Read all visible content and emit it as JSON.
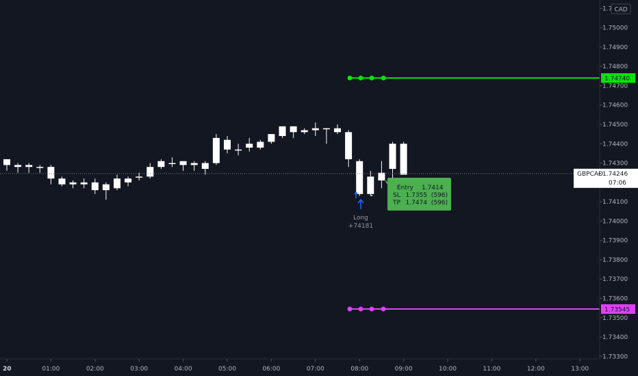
{
  "colors": {
    "background": "#131722",
    "candle": "#ffffff",
    "tp_line": "#00e600",
    "sl_line": "#e040fb",
    "entry_box": "#4caf50",
    "signal_arrow": "#2962ff",
    "price_line": "#787b86"
  },
  "chart_data": {
    "type": "candlestick",
    "symbol": "GBPCAD",
    "currency": "CAD",
    "current_price": "1.74246",
    "countdown": "07:06",
    "x_ticks": [
      "20",
      "01:00",
      "02:00",
      "03:00",
      "04:00",
      "05:00",
      "06:00",
      "07:00",
      "08:00",
      "09:00",
      "10:00",
      "11:00",
      "12:00",
      "13:00"
    ],
    "y_ticks": [
      "1.75100",
      "1.75000",
      "1.74900",
      "1.74800",
      "1.74700",
      "1.74600",
      "1.74500",
      "1.74400",
      "1.74300",
      "1.74200",
      "1.74100",
      "1.74000",
      "1.73900",
      "1.73800",
      "1.73700",
      "1.73600",
      "1.73500",
      "1.73400",
      "1.73300"
    ],
    "ylim": [
      1.7328,
      1.7514
    ],
    "candles": [
      {
        "o": 1.7429,
        "h": 1.7432,
        "l": 1.7426,
        "c": 1.7432
      },
      {
        "o": 1.7429,
        "h": 1.743,
        "l": 1.7425,
        "c": 1.7428
      },
      {
        "o": 1.7428,
        "h": 1.743,
        "l": 1.7425,
        "c": 1.7429
      },
      {
        "o": 1.7428,
        "h": 1.7429,
        "l": 1.7425,
        "c": 1.7428
      },
      {
        "o": 1.7428,
        "h": 1.7429,
        "l": 1.7419,
        "c": 1.7422
      },
      {
        "o": 1.7422,
        "h": 1.7423,
        "l": 1.7418,
        "c": 1.7419
      },
      {
        "o": 1.7419,
        "h": 1.7421,
        "l": 1.7417,
        "c": 1.742
      },
      {
        "o": 1.742,
        "h": 1.7422,
        "l": 1.7417,
        "c": 1.7419
      },
      {
        "o": 1.742,
        "h": 1.7422,
        "l": 1.7414,
        "c": 1.7416
      },
      {
        "o": 1.7416,
        "h": 1.742,
        "l": 1.7411,
        "c": 1.7419
      },
      {
        "o": 1.7417,
        "h": 1.7424,
        "l": 1.7416,
        "c": 1.7422
      },
      {
        "o": 1.742,
        "h": 1.7423,
        "l": 1.7418,
        "c": 1.7422
      },
      {
        "o": 1.7423,
        "h": 1.7425,
        "l": 1.7421,
        "c": 1.7423
      },
      {
        "o": 1.7423,
        "h": 1.743,
        "l": 1.7422,
        "c": 1.7428
      },
      {
        "o": 1.7428,
        "h": 1.7432,
        "l": 1.7427,
        "c": 1.7431
      },
      {
        "o": 1.743,
        "h": 1.7433,
        "l": 1.7428,
        "c": 1.743
      },
      {
        "o": 1.7429,
        "h": 1.7431,
        "l": 1.7426,
        "c": 1.7431
      },
      {
        "o": 1.7429,
        "h": 1.7431,
        "l": 1.7426,
        "c": 1.743
      },
      {
        "o": 1.743,
        "h": 1.7431,
        "l": 1.7424,
        "c": 1.7427
      },
      {
        "o": 1.743,
        "h": 1.7445,
        "l": 1.7429,
        "c": 1.7443
      },
      {
        "o": 1.7442,
        "h": 1.7444,
        "l": 1.7435,
        "c": 1.7437
      },
      {
        "o": 1.7437,
        "h": 1.744,
        "l": 1.7434,
        "c": 1.7437
      },
      {
        "o": 1.7438,
        "h": 1.7443,
        "l": 1.7436,
        "c": 1.744
      },
      {
        "o": 1.7438,
        "h": 1.7442,
        "l": 1.7437,
        "c": 1.7441
      },
      {
        "o": 1.7441,
        "h": 1.7445,
        "l": 1.744,
        "c": 1.7445
      },
      {
        "o": 1.7444,
        "h": 1.7449,
        "l": 1.7443,
        "c": 1.7449
      },
      {
        "o": 1.7449,
        "h": 1.7449,
        "l": 1.7443,
        "c": 1.7446
      },
      {
        "o": 1.7446,
        "h": 1.7448,
        "l": 1.7445,
        "c": 1.7447
      },
      {
        "o": 1.7447,
        "h": 1.7451,
        "l": 1.7444,
        "c": 1.7448
      },
      {
        "o": 1.7448,
        "h": 1.7448,
        "l": 1.744,
        "c": 1.7448
      },
      {
        "o": 1.7448,
        "h": 1.745,
        "l": 1.7445,
        "c": 1.7446
      },
      {
        "o": 1.7446,
        "h": 1.7447,
        "l": 1.7428,
        "c": 1.7432
      },
      {
        "o": 1.7431,
        "h": 1.7432,
        "l": 1.7413,
        "c": 1.7414
      },
      {
        "o": 1.7414,
        "h": 1.7426,
        "l": 1.7413,
        "c": 1.7423
      },
      {
        "o": 1.7421,
        "h": 1.7431,
        "l": 1.7417,
        "c": 1.7425
      },
      {
        "o": 1.7427,
        "h": 1.7441,
        "l": 1.7417,
        "c": 1.744
      },
      {
        "o": 1.744,
        "h": 1.7441,
        "l": 1.7424,
        "c": 1.7424
      }
    ],
    "take_profit": {
      "price": 1.7474,
      "label": "1.74740"
    },
    "stop_loss": {
      "price": 1.73545,
      "label": "1.73545"
    },
    "entry_box": {
      "rows": [
        {
          "k": "Entry",
          "v": "1.7414",
          "extra": ""
        },
        {
          "k": "SL",
          "v": "1.7355",
          "extra": "(596)"
        },
        {
          "k": "TP",
          "v": "1.7474",
          "extra": "(596)"
        }
      ]
    },
    "signal": {
      "label": "Long",
      "value": "+74181"
    }
  }
}
